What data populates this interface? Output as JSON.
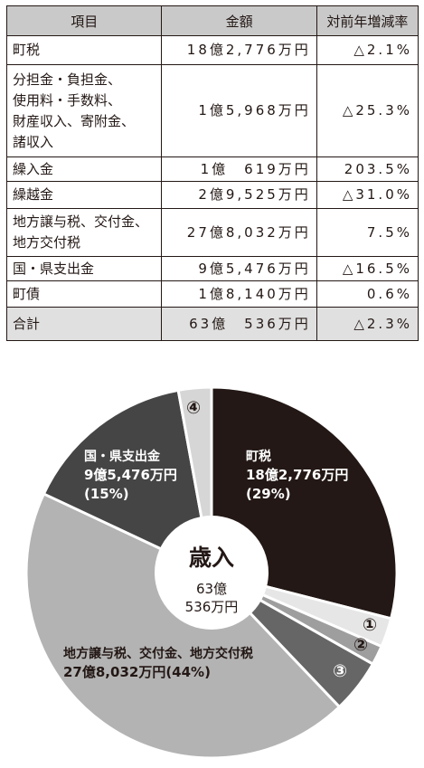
{
  "table": {
    "headers": [
      "項目",
      "金額",
      "対前年増減率"
    ],
    "rows": [
      {
        "item": "町税",
        "amount": "18億2,776万円",
        "rate": "△2.1%"
      },
      {
        "item": "分担金・負担金、\n使用料・手数料、\n財産収入、寄附金、\n諸収入",
        "amount": "1億5,968万円",
        "rate": "△25.3%"
      },
      {
        "item": "繰入金",
        "amount": "1億　619万円",
        "rate": "203.5%"
      },
      {
        "item": "繰越金",
        "amount": "2億9,525万円",
        "rate": "△31.0%"
      },
      {
        "item": "地方譲与税、交付金、\n地方交付税",
        "amount": "27億8,032万円",
        "rate": "7.5%"
      },
      {
        "item": "国・県支出金",
        "amount": "9億5,476万円",
        "rate": "△16.5%"
      },
      {
        "item": "町債",
        "amount": "1億8,140万円",
        "rate": "0.6%"
      },
      {
        "item": "合計",
        "amount": "63億　536万円",
        "rate": "△2.3%"
      }
    ]
  },
  "chart_data": {
    "type": "pie",
    "center_title": "歳入",
    "center_value_line1": "63億",
    "center_value_line2": "536万円",
    "slices": [
      {
        "key": "town-tax",
        "label": "町税",
        "amount": "18億2,776万円",
        "pct_label": "(29%)",
        "value": 182776,
        "color": "#231815",
        "text_color": "#ffffff"
      },
      {
        "key": "marker-1",
        "label": "①",
        "value": 15968,
        "color": "#e6e6e6",
        "text_color": "#231815"
      },
      {
        "key": "marker-2",
        "label": "②",
        "value": 10619,
        "color": "#9e9e9e",
        "text_color": "#231815"
      },
      {
        "key": "marker-3",
        "label": "③",
        "value": 29525,
        "color": "#666666",
        "text_color": "#ffffff"
      },
      {
        "key": "local-grants",
        "label": "地方譲与税、交付金、地方交付税",
        "amount": "27億8,032万円",
        "pct_label": "(44%)",
        "value": 278032,
        "color": "#b3b3b3",
        "text_color": "#231815"
      },
      {
        "key": "national-prefectural",
        "label": "国・県支出金",
        "amount": "9億5,476万円",
        "pct_label": "(15%)",
        "value": 95476,
        "color": "#454545",
        "text_color": "#ffffff"
      },
      {
        "key": "marker-4",
        "label": "④",
        "value": 18140,
        "color": "#d6d6d6",
        "text_color": "#231815"
      }
    ]
  }
}
